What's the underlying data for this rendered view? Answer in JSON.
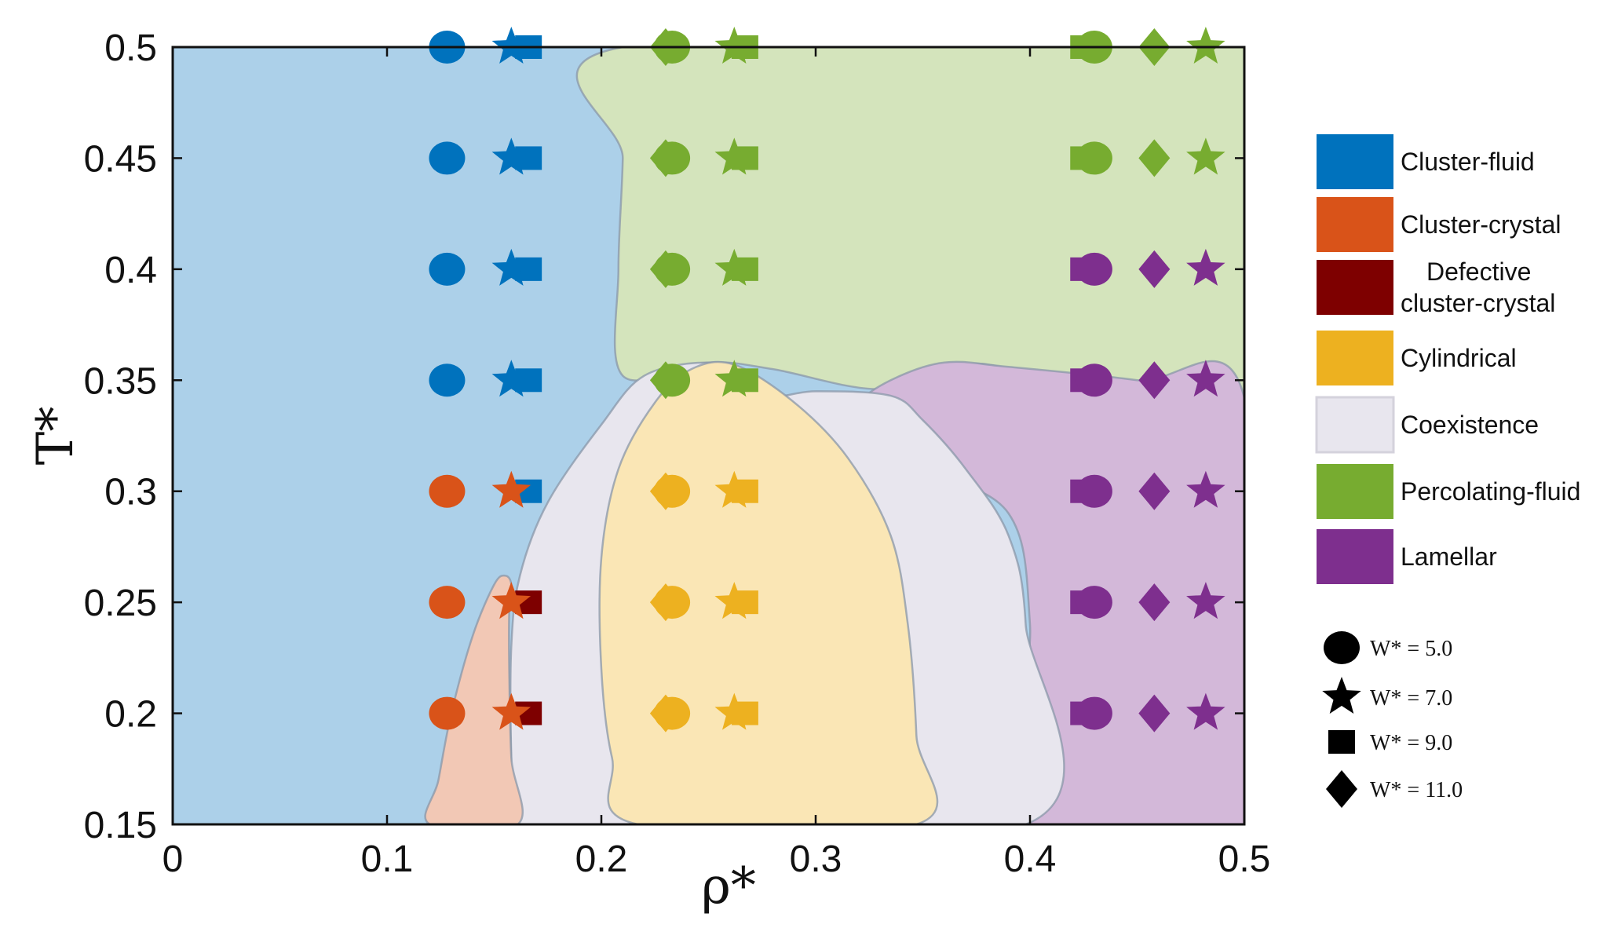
{
  "chart_data": {
    "type": "scatter",
    "title": "",
    "xlabel": "ρ*",
    "ylabel": "T*",
    "xlim": [
      0,
      0.5
    ],
    "ylim": [
      0.15,
      0.5
    ],
    "xticks": [
      "0",
      "0.1",
      "0.2",
      "0.3",
      "0.4",
      "0.5"
    ],
    "yticks": [
      "0.15",
      "0.2",
      "0.25",
      "0.3",
      "0.35",
      "0.4",
      "0.45",
      "0.5"
    ],
    "grid": false,
    "legend_placement": "right",
    "phases": [
      {
        "key": "cluster-fluid",
        "label": "Cluster-fluid",
        "color": "#0072bd",
        "region_fill": "#acd0e9"
      },
      {
        "key": "cluster-crystal",
        "label": "Cluster-crystal",
        "color": "#d95319",
        "region_fill": "#f2c8b5"
      },
      {
        "key": "defective",
        "label": "Defective\ncluster-crystal",
        "color": "#7e0000",
        "region_fill": ""
      },
      {
        "key": "cylindrical",
        "label": "Cylindrical",
        "color": "#edb120",
        "region_fill": "#fae6b5"
      },
      {
        "key": "coexistence",
        "label": "Coexistence",
        "color": "#e8e6ee",
        "region_fill": "#e8e6ee"
      },
      {
        "key": "percolating-fluid",
        "label": "Percolating-fluid",
        "color": "#77ac30",
        "region_fill": "#d4e4bc"
      },
      {
        "key": "lamellar",
        "label": "Lamellar",
        "color": "#7e2f8e",
        "region_fill": "#d3b8d9"
      }
    ],
    "marker_legend": [
      {
        "shape": "circle",
        "label": "W* = 5.0"
      },
      {
        "shape": "star",
        "label": "W* = 7.0"
      },
      {
        "shape": "square",
        "label": "W* = 9.0"
      },
      {
        "shape": "diamond",
        "label": "W* = 11.0"
      }
    ],
    "temperatures": [
      0.5,
      0.45,
      0.4,
      0.35,
      0.3,
      0.25,
      0.2
    ],
    "series": [
      {
        "name": "W* = 5.0",
        "shape": "circle",
        "x": 0.128,
        "phases": [
          "cluster-fluid",
          "cluster-fluid",
          "cluster-fluid",
          "cluster-fluid",
          "cluster-crystal",
          "cluster-crystal",
          "cluster-crystal"
        ]
      },
      {
        "name": "W* = 9.0",
        "shape": "square",
        "x": 0.166,
        "phases": [
          "cluster-fluid",
          "cluster-fluid",
          "cluster-fluid",
          "cluster-fluid",
          "cluster-fluid",
          "defective",
          "defective"
        ]
      },
      {
        "name": "W* = 7.0",
        "shape": "star",
        "x": 0.158,
        "phases": [
          "cluster-fluid",
          "cluster-fluid",
          "cluster-fluid",
          "cluster-fluid",
          "cluster-crystal",
          "cluster-crystal",
          "cluster-crystal"
        ]
      },
      {
        "name": "W* = 11.0",
        "shape": "diamond",
        "x": 0.23,
        "phases": [
          "percolating-fluid",
          "percolating-fluid",
          "percolating-fluid",
          "percolating-fluid",
          "cylindrical",
          "cylindrical",
          "cylindrical"
        ]
      },
      {
        "name": "W* = 5.0",
        "shape": "circle",
        "x": 0.233,
        "phases": [
          "percolating-fluid",
          "percolating-fluid",
          "percolating-fluid",
          "percolating-fluid",
          "cylindrical",
          "cylindrical",
          "cylindrical"
        ]
      },
      {
        "name": "W* = 9.0",
        "shape": "square",
        "x": 0.267,
        "phases": [
          "percolating-fluid",
          "percolating-fluid",
          "percolating-fluid",
          "percolating-fluid",
          "cylindrical",
          "cylindrical",
          "cylindrical"
        ]
      },
      {
        "name": "W* = 7.0",
        "shape": "star",
        "x": 0.262,
        "phases": [
          "percolating-fluid",
          "percolating-fluid",
          "percolating-fluid",
          "percolating-fluid",
          "cylindrical",
          "cylindrical",
          "cylindrical"
        ]
      },
      {
        "name": "W* = 9.0",
        "shape": "square",
        "x": 0.425,
        "phases": [
          "percolating-fluid",
          "percolating-fluid",
          "lamellar",
          "lamellar",
          "lamellar",
          "lamellar",
          "lamellar"
        ]
      },
      {
        "name": "W* = 5.0",
        "shape": "circle",
        "x": 0.43,
        "phases": [
          "percolating-fluid",
          "percolating-fluid",
          "lamellar",
          "lamellar",
          "lamellar",
          "lamellar",
          "lamellar"
        ]
      },
      {
        "name": "W* = 11.0",
        "shape": "diamond",
        "x": 0.458,
        "phases": [
          "percolating-fluid",
          "percolating-fluid",
          "lamellar",
          "lamellar",
          "lamellar",
          "lamellar",
          "lamellar"
        ]
      },
      {
        "name": "W* = 7.0",
        "shape": "star",
        "x": 0.482,
        "phases": [
          "percolating-fluid",
          "percolating-fluid",
          "lamellar",
          "lamellar",
          "lamellar",
          "lamellar",
          "lamellar"
        ]
      }
    ],
    "regions": [
      {
        "phase": "percolating-fluid",
        "boundary": [
          [
            0.21,
            0.5
          ],
          [
            0.5,
            0.5
          ],
          [
            0.5,
            0.342
          ],
          [
            0.4,
            0.354
          ],
          [
            0.37,
            0.357
          ],
          [
            0.33,
            0.346
          ],
          [
            0.28,
            0.355
          ],
          [
            0.25,
            0.358
          ],
          [
            0.21,
            0.352
          ],
          [
            0.208,
            0.4
          ],
          [
            0.21,
            0.45
          ]
        ]
      },
      {
        "phase": "lamellar",
        "boundary": [
          [
            0.4,
            0.15
          ],
          [
            0.5,
            0.15
          ],
          [
            0.5,
            0.342
          ],
          [
            0.45,
            0.35
          ],
          [
            0.39,
            0.356
          ],
          [
            0.36,
            0.358
          ],
          [
            0.335,
            0.35
          ],
          [
            0.318,
            0.338
          ],
          [
            0.317,
            0.325
          ],
          [
            0.35,
            0.31
          ],
          [
            0.39,
            0.29
          ],
          [
            0.4,
            0.24
          ]
        ]
      },
      {
        "phase": "coexistence",
        "boundary": [
          [
            0.16,
            0.15
          ],
          [
            0.398,
            0.15
          ],
          [
            0.398,
            0.24
          ],
          [
            0.39,
            0.28
          ],
          [
            0.37,
            0.31
          ],
          [
            0.35,
            0.332
          ],
          [
            0.335,
            0.343
          ],
          [
            0.3,
            0.345
          ],
          [
            0.28,
            0.343
          ],
          [
            0.27,
            0.352
          ],
          [
            0.25,
            0.358
          ],
          [
            0.22,
            0.352
          ],
          [
            0.2,
            0.33
          ],
          [
            0.175,
            0.295
          ],
          [
            0.162,
            0.262
          ],
          [
            0.158,
            0.23
          ],
          [
            0.158,
            0.18
          ]
        ]
      },
      {
        "phase": "cylindrical",
        "boundary": [
          [
            0.217,
            0.15
          ],
          [
            0.347,
            0.15
          ],
          [
            0.347,
            0.19
          ],
          [
            0.343,
            0.24
          ],
          [
            0.335,
            0.28
          ],
          [
            0.315,
            0.315
          ],
          [
            0.29,
            0.34
          ],
          [
            0.262,
            0.357
          ],
          [
            0.242,
            0.355
          ],
          [
            0.225,
            0.34
          ],
          [
            0.208,
            0.31
          ],
          [
            0.2,
            0.27
          ],
          [
            0.2,
            0.22
          ],
          [
            0.205,
            0.18
          ]
        ]
      },
      {
        "phase": "cluster-crystal",
        "boundary": [
          [
            0.12,
            0.15
          ],
          [
            0.161,
            0.15
          ],
          [
            0.158,
            0.18
          ],
          [
            0.157,
            0.22
          ],
          [
            0.157,
            0.245
          ],
          [
            0.158,
            0.258
          ],
          [
            0.155,
            0.262
          ],
          [
            0.15,
            0.258
          ],
          [
            0.14,
            0.235
          ],
          [
            0.13,
            0.2
          ],
          [
            0.124,
            0.17
          ]
        ]
      }
    ]
  }
}
